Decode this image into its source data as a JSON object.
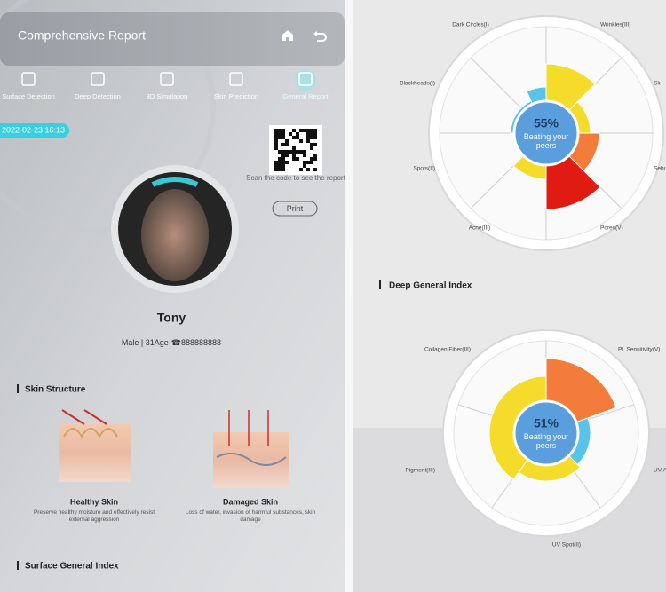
{
  "header": {
    "title": "Comprehensive Report"
  },
  "tabs": [
    "Surface Detection",
    "Deep Detection",
    "3D Simulation",
    "Skin Prediction",
    "General Report"
  ],
  "report": {
    "datetime": "2022-02-23 16:13",
    "qr_caption": "Scan the code to see the report",
    "print_button": "Print"
  },
  "profile": {
    "name": "Tony",
    "info": "Male | 31Age",
    "phone": "888888888"
  },
  "skin_structure": {
    "title": "Skin Structure",
    "items": [
      {
        "label": "Healthy Skin",
        "description": "Preserve healthy moisture and effectively resist external aggression"
      },
      {
        "label": "Damaged Skin",
        "description": "Loss of water, invasion of harmful substances, skin damage"
      }
    ]
  },
  "surface_general_index": {
    "title": "Surface General Index"
  },
  "deep_chart": {
    "score": "55%",
    "caption": "Beating your peers",
    "labels": [
      "Dark Circles(I)",
      "Wrinkles(III)",
      "Sk",
      "Blackheads(I)",
      "Sebu",
      "Spots(II)",
      "Acne(III)",
      "Pores(V)"
    ]
  },
  "deep_general_index": {
    "title": "Deep General Index"
  },
  "second_chart": {
    "score": "51%",
    "caption": "Beating your peers",
    "labels": [
      "Collagen Fiber(III)",
      "PL Sensitivity(V)",
      "Pigment(III)",
      "UV A",
      "UV Spot(II)"
    ]
  }
}
